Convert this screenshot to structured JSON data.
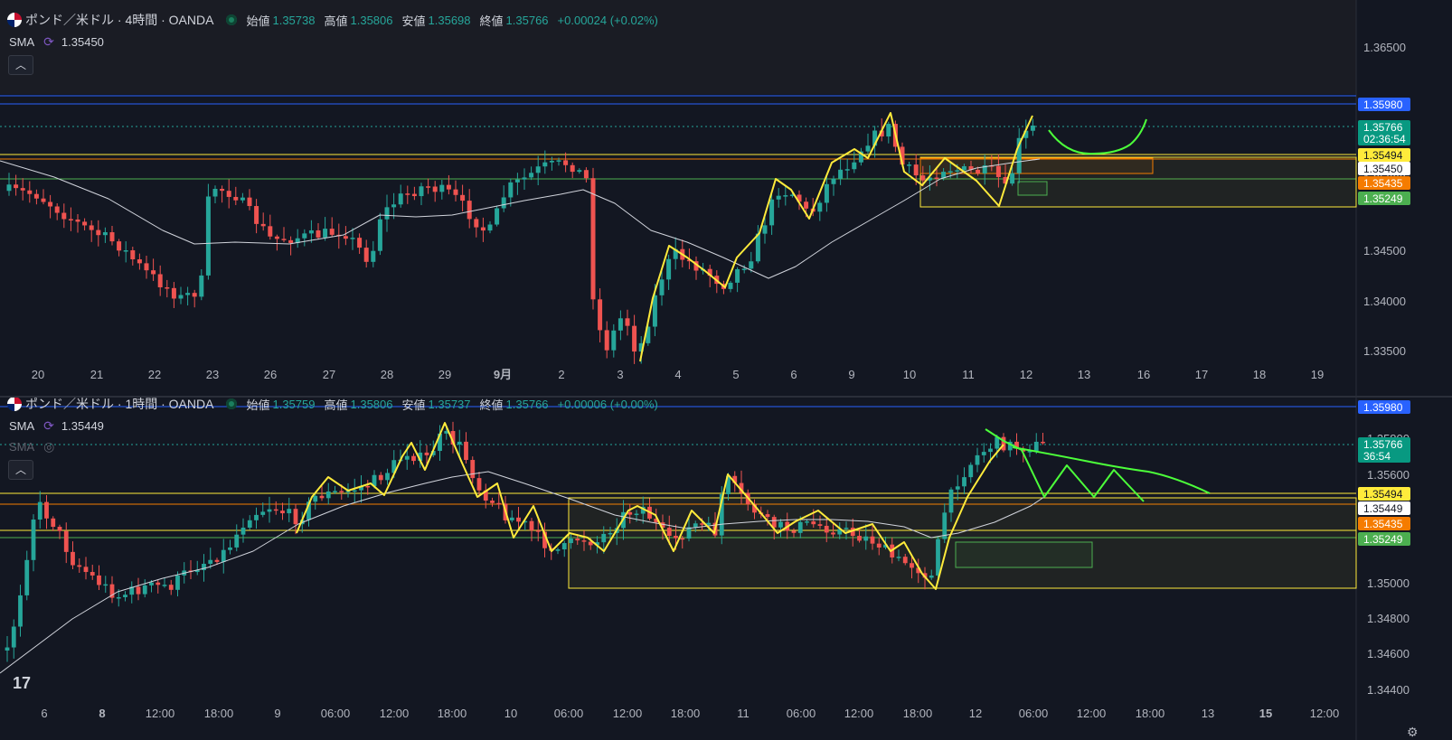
{
  "top_pane": {
    "symbol": "ポンド／米ドル · 4時間 · OANDA",
    "ohlc": {
      "open_label": "始値",
      "open": "1.35738",
      "high_label": "高値",
      "high": "1.35806",
      "low_label": "安値",
      "low": "1.35698",
      "close_label": "終値",
      "close": "1.35766",
      "change": "+0.00024 (+0.02%)"
    },
    "indicator": {
      "name": "SMA",
      "value": "1.35450"
    },
    "collapse_icon": "chevron-up-icon",
    "price_axis": [
      "1.36500",
      "1.35000",
      "1.34500",
      "1.34000",
      "1.33500"
    ],
    "price_tags": [
      {
        "text": "1.35980",
        "bg": "#2962ff",
        "fg": "#ffffff"
      },
      {
        "text": "1.35766",
        "sub": "02:36:54",
        "bg": "#089981",
        "fg": "#ffffff"
      },
      {
        "text": "1.35494",
        "bg": "#ffeb3b",
        "fg": "#131722"
      },
      {
        "text": "1.35450",
        "bg": "#ffffff",
        "fg": "#131722"
      },
      {
        "text": "1.35435",
        "bg": "#f57c00",
        "fg": "#ffffff"
      },
      {
        "text": "1.35249",
        "bg": "#4caf50",
        "fg": "#ffffff"
      }
    ],
    "time_axis": [
      "20",
      "21",
      "22",
      "23",
      "26",
      "27",
      "28",
      "29",
      "9月",
      "2",
      "3",
      "4",
      "5",
      "6",
      "9",
      "10",
      "11",
      "12",
      "13",
      "16",
      "17",
      "18",
      "19"
    ]
  },
  "bottom_pane": {
    "symbol": "ポンド／米ドル · 1時間 · OANDA",
    "ohlc": {
      "open_label": "始値",
      "open": "1.35759",
      "high_label": "高値",
      "high": "1.35806",
      "low_label": "安値",
      "low": "1.35737",
      "close_label": "終値",
      "close": "1.35766",
      "change": "+0.00006 (+0.00%)"
    },
    "indicator": {
      "name": "SMA",
      "value": "1.35449"
    },
    "indicator2": {
      "name": "SMA",
      "icon": "eye-off-icon"
    },
    "collapse_icon": "chevron-up-icon",
    "price_axis": [
      "1.35800",
      "1.35600",
      "1.35000",
      "1.34800",
      "1.34600",
      "1.34400"
    ],
    "price_tags": [
      {
        "text": "1.35980",
        "bg": "#2962ff",
        "fg": "#ffffff"
      },
      {
        "text": "1.35766",
        "sub": "36:54",
        "bg": "#089981",
        "fg": "#ffffff"
      },
      {
        "text": "1.35494",
        "bg": "#ffeb3b",
        "fg": "#131722"
      },
      {
        "text": "1.35449",
        "bg": "#ffffff",
        "fg": "#131722"
      },
      {
        "text": "1.35435",
        "bg": "#f57c00",
        "fg": "#ffffff"
      },
      {
        "text": "1.35249",
        "bg": "#4caf50",
        "fg": "#ffffff"
      }
    ],
    "time_axis": [
      "6",
      "8",
      "12:00",
      "18:00",
      "9",
      "06:00",
      "12:00",
      "18:00",
      "10",
      "06:00",
      "12:00",
      "18:00",
      "11",
      "06:00",
      "12:00",
      "18:00",
      "12",
      "06:00",
      "12:00",
      "18:00",
      "13",
      "15",
      "12:00"
    ]
  },
  "colors": {
    "background": "#131722",
    "up": "#26a69a",
    "down": "#ef5350",
    "sma": "#d1d4dc",
    "drawing_yellow": "#ffeb3b",
    "drawing_green": "#4cff3a",
    "level_blue": "#2962ff",
    "level_orange": "#f57c00",
    "level_green": "#4caf50"
  },
  "logo_icon": "tradingview-logo-icon",
  "settings_icon": "gear-icon"
}
